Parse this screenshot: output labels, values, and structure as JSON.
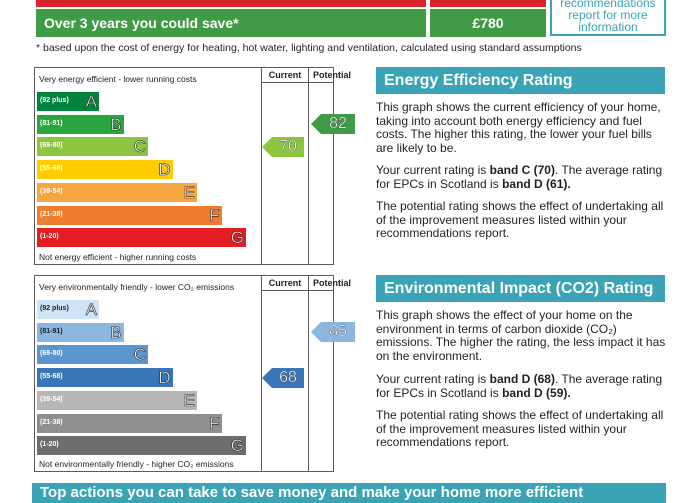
{
  "savings": {
    "label": "Over 3 years you could save*",
    "value": "£780",
    "rec_note": "recommendations report for more information"
  },
  "footnote": "* based upon the cost of energy for heating, hot water, lighting and ventilation, calculated using standard assumptions",
  "energy_chart": {
    "top_caption": "Very energy efficient - lower running costs",
    "bottom_caption": "Not energy efficient - higher running costs",
    "col_current": "Current",
    "col_potential": "Potential",
    "current": "70",
    "potential": "82",
    "current_color": "#8cc63f",
    "potential_color": "#3f9b45",
    "bands": [
      {
        "range": "(92 plus)",
        "letter": "A",
        "color": "#00843d"
      },
      {
        "range": "(81-91)",
        "letter": "B",
        "color": "#2aa43e"
      },
      {
        "range": "(69-80)",
        "letter": "C",
        "color": "#8cc63f"
      },
      {
        "range": "(55-68)",
        "letter": "D",
        "color": "#ffcc00"
      },
      {
        "range": "(39-54)",
        "letter": "E",
        "color": "#f7a540"
      },
      {
        "range": "(21-38)",
        "letter": "F",
        "color": "#ef7d2e"
      },
      {
        "range": "(1-20)",
        "letter": "G",
        "color": "#e31d23"
      }
    ]
  },
  "env_chart": {
    "top_caption": "Very environmentally friendly - lower CO₂ emissions",
    "bottom_caption": "Not environmentally friendly - higher CO₂ emissions",
    "col_current": "Current",
    "col_potential": "Potential",
    "current": "68",
    "potential": "85",
    "current_color": "#3a75b8",
    "potential_color": "#8ab6e0",
    "bands": [
      {
        "range": "(92 plus)",
        "letter": "A",
        "color": "#cfe4f6"
      },
      {
        "range": "(81-91)",
        "letter": "B",
        "color": "#8ab6e0"
      },
      {
        "range": "(69-80)",
        "letter": "C",
        "color": "#5a95d0"
      },
      {
        "range": "(55-68)",
        "letter": "D",
        "color": "#3a75b8"
      },
      {
        "range": "(39-54)",
        "letter": "E",
        "color": "#b7b7b7"
      },
      {
        "range": "(21-38)",
        "letter": "F",
        "color": "#8f8f8f"
      },
      {
        "range": "(1-20)",
        "letter": "G",
        "color": "#6d6d6d"
      }
    ]
  },
  "energy_panel": {
    "title": "Energy Efficiency Rating",
    "p1": "This graph shows the current efficiency of your home, taking into account both energy efficiency and fuel costs. The higher this rating, the lower your fuel bills are likely to be.",
    "p2_pre": "Your current rating is ",
    "p2_b1": "band C (70)",
    "p2_mid": ". The average rating for EPCs in Scotland is ",
    "p2_b2": "band D (61).",
    "p3": "The potential rating shows the effect of undertaking all of the improvement measures listed within your recommendations report."
  },
  "env_panel": {
    "title": "Environmental Impact (CO2) Rating",
    "p1": "This graph shows the effect of your home on the environment in terms of carbon dioxide (CO₂) emissions. The higher the rating, the less impact it has on the environment.",
    "p2_pre": "Your current rating is ",
    "p2_b1": "band D (68)",
    "p2_mid": ". The average rating for EPCs in Scotland is ",
    "p2_b2": "band D (59).",
    "p3": "The potential rating shows the effect of undertaking all of the improvement measures listed within your recommendations report."
  },
  "bottom_heading": "Top actions you can take to save money and make your home more efficient"
}
